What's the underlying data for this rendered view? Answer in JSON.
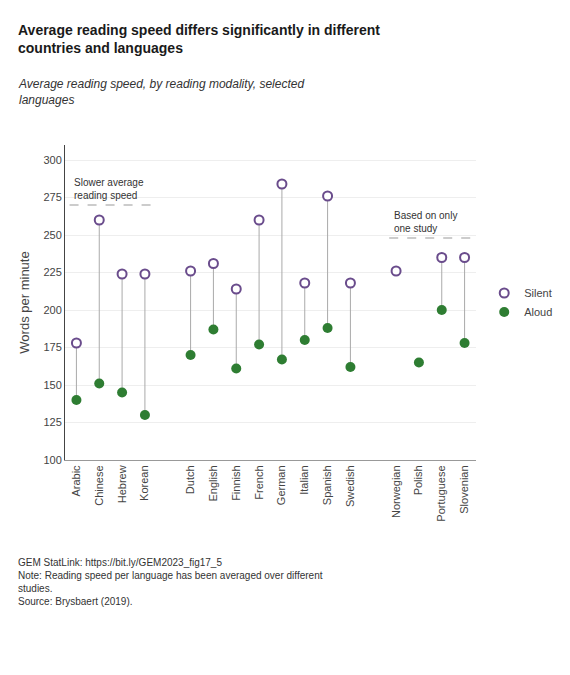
{
  "chart_data": {
    "type": "dumbbell",
    "title": "Average reading speed differs significantly in different\ncountries and languages",
    "subtitle": "Average reading speed, by reading modality, selected\nlanguages",
    "y_label": "Words per minute",
    "categories": [
      "Arabic",
      "Chinese",
      "Hebrew",
      "Korean",
      null,
      "Dutch",
      "English",
      "Finnish",
      "French",
      "German",
      "Italian",
      "Spanish",
      "Swedish",
      null,
      "Norwegian",
      "Polish",
      "Portuguese",
      "Slovenian"
    ],
    "series": [
      {
        "name": "Silent",
        "color": "#6a4c8c",
        "marker": "circle-open",
        "values": [
          178,
          260,
          224,
          224,
          null,
          226,
          231,
          214,
          260,
          284,
          218,
          276,
          218,
          null,
          226,
          null,
          235,
          235
        ]
      },
      {
        "name": "Aloud",
        "color": "#2e7d32",
        "marker": "circle",
        "values": [
          140,
          151,
          145,
          130,
          null,
          170,
          187,
          161,
          177,
          167,
          180,
          188,
          162,
          null,
          null,
          165,
          200,
          178
        ]
      }
    ],
    "ylim": [
      100,
      310
    ],
    "yticks": [
      100,
      125,
      150,
      175,
      200,
      225,
      250,
      275,
      300
    ],
    "grid": true,
    "legend": "right",
    "annotations": [
      {
        "text": "Slower average\nreading speed",
        "y": 270,
        "from": "Arabic",
        "to": "Korean"
      },
      {
        "text": "Based on only\none study",
        "y": 248,
        "from": "Norwegian",
        "to": "Slovenian"
      }
    ],
    "notes": [
      "GEM StatLink: https://bit.ly/GEM2023_fig17_5",
      "Note: Reading speed per language has been averaged over different\nstudies.",
      "Source: Brysbaert (2019)."
    ]
  }
}
